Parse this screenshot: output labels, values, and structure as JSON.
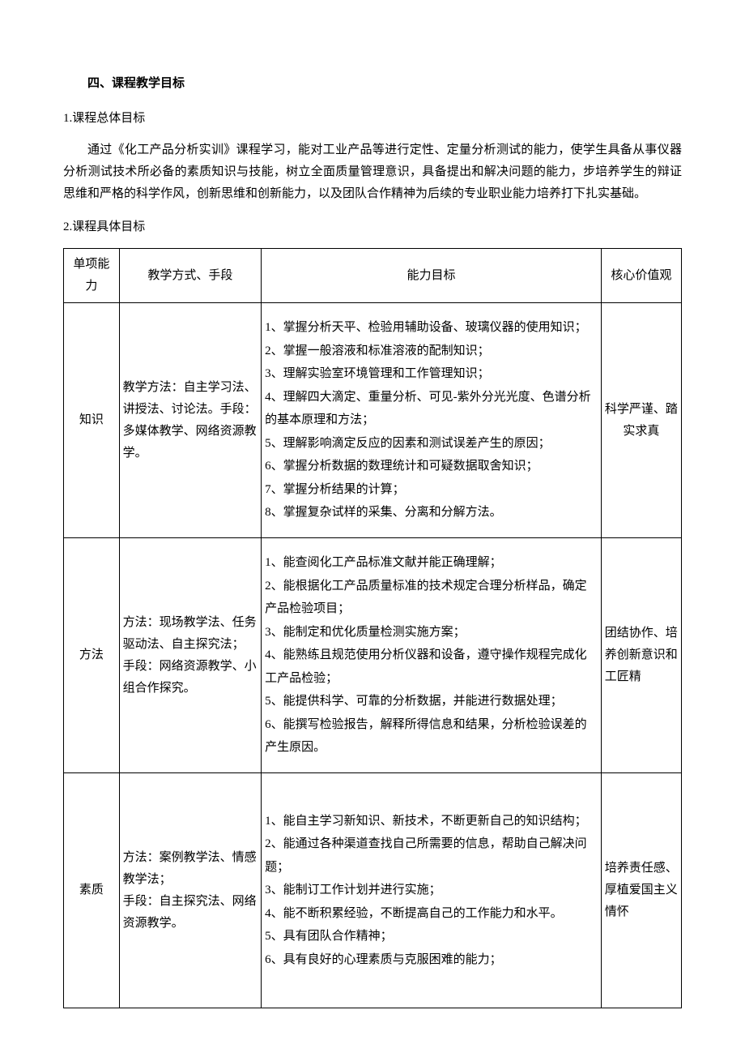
{
  "headings": {
    "section": "四、课程教学目标",
    "sub1": "1.课程总体目标",
    "sub2": "2.课程具体目标"
  },
  "paragraph": "通过《化工产品分析实训》课程学习，能对工业产品等进行定性、定量分析测试的能力，使学生具备从事仪器分析测试技术所必备的素质知识与技能，树立全面质量管理意识，具备提出和解决问题的能力，步培养学生的辩证思维和严格的科学作风，创新思维和创新能力，以及团队合作精神为后续的专业职业能力培养打下扎实基础。",
  "table": {
    "headers": {
      "c1": "单项能力",
      "c2": "教学方式、手段",
      "c3": "能力目标",
      "c4": "核心价值观"
    },
    "rows": [
      {
        "ability": "知识",
        "method": "教学方法：自主学习法、讲授法、讨论法。手段：多媒体教学、网络资源教学。",
        "goals": "1、掌握分析天平、检验用辅助设备、玻璃仪器的使用知识；\n2、掌握一般溶液和标准溶液的配制知识；\n3、理解实验室环境管理和工作管理知识；\n4、理解四大滴定、重量分析、可见-紫外分光光度、色谱分析的基本原理和方法；\n5、理解影响滴定反应的因素和测试误差产生的原因；\n6、掌握分析数据的数理统计和可疑数据取舍知识；\n7、掌握分析结果的计算；\n8、掌握复杂试样的采集、分离和分解方法。",
        "value": "科学严谨、踏实求真"
      },
      {
        "ability": "方法",
        "method": "方法：现场教学法、任务驱动法、自主探究法；\n手段：网络资源教学、小组合作探究。",
        "goals": "1、能查阅化工产品标准文献并能正确理解；\n2、能根据化工产品质量标准的技术规定合理分析样品，确定产品检验项目；\n3、能制定和优化质量检测实施方案；\n4、能熟练且规范使用分析仪器和设备，遵守操作规程完成化工产品检验；\n5、能提供科学、可靠的分析数据，并能进行数据处理；\n6、能撰写检验报告，解释所得信息和结果，分析检验误差的产生原因。",
        "value": "团结协作、培养创新意识和工匠精"
      },
      {
        "ability": "素质",
        "method": "方法：案例教学法、情感教学法；\n手段：自主探究法、网络资源教学。",
        "goals": "1、能自主学习新知识、新技术，不断更新自己的知识结构；\n2、能通过各种渠道查找自己所需要的信息，帮助自己解决问题；\n3、能制订工作计划并进行实施；\n4、能不断积累经验，不断提高自己的工作能力和水平。\n5、具有团队合作精神；\n6、具有良好的心理素质与克服困难的能力；",
        "value": "培养责任感、厚植爱国主义情怀"
      }
    ]
  },
  "style": {
    "background_color": "#ffffff",
    "text_color": "#000000",
    "border_color": "#000000",
    "font_family": "SimSun",
    "base_fontsize": 15
  }
}
